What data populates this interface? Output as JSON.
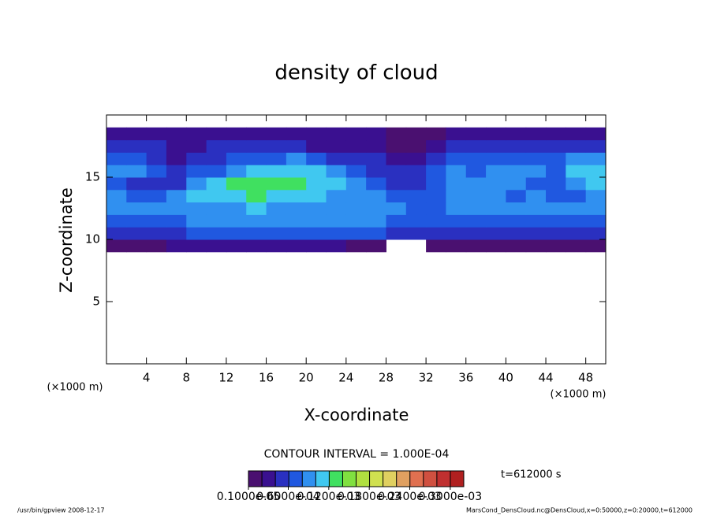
{
  "chart_data": {
    "type": "heatmap",
    "title": "density of cloud",
    "x_label": "X-coordinate",
    "y_label": "Z-coordinate",
    "x_unit": "(×1000 m)",
    "y_unit": "(×1000 m)",
    "contour_interval": "CONTOUR INTERVAL = 1.000E-04",
    "time_label": "t=612000 s",
    "footer_left": "/usr/bin/gpview  2008-12-17",
    "footer_right": "MarsCond_DensCloud.nc@DensCloud,x=0:50000,z=0:20000,t=612000",
    "xlim": [
      0,
      50
    ],
    "ylim": [
      0,
      20
    ],
    "xticks": [
      4,
      8,
      12,
      16,
      20,
      24,
      28,
      32,
      36,
      40,
      44,
      48
    ],
    "yticks": [
      5,
      10,
      15
    ],
    "x": [
      1,
      3,
      5,
      7,
      9,
      11,
      13,
      15,
      17,
      19,
      21,
      23,
      25,
      27,
      29,
      31,
      33,
      35,
      37,
      39,
      41,
      43,
      45,
      47,
      49
    ],
    "z": [
      9.5,
      10.5,
      11.5,
      12.5,
      13.5,
      14.5,
      15.5,
      16.5,
      17.5,
      18.5
    ],
    "values": [
      [
        1e-05,
        1e-05,
        1e-05,
        3e-05,
        3e-05,
        3e-05,
        3e-05,
        3e-05,
        3e-05,
        3e-05,
        3e-05,
        3e-05,
        1e-05,
        1e-05,
        null,
        null,
        1e-05,
        1e-05,
        1e-05,
        1e-05,
        1e-05,
        1e-05,
        1e-05,
        1e-05,
        1e-05
      ],
      [
        5e-05,
        5e-05,
        5e-05,
        5e-05,
        7e-05,
        7e-05,
        7e-05,
        7e-05,
        7e-05,
        7e-05,
        7e-05,
        7e-05,
        7e-05,
        7e-05,
        5e-05,
        5e-05,
        5e-05,
        5e-05,
        5e-05,
        5e-05,
        5e-05,
        5e-05,
        5e-05,
        5e-05,
        5e-05
      ],
      [
        7e-05,
        7e-05,
        7e-05,
        7e-05,
        9e-05,
        9e-05,
        9e-05,
        9e-05,
        9e-05,
        9e-05,
        9e-05,
        9e-05,
        9e-05,
        9e-05,
        7e-05,
        7e-05,
        7e-05,
        7e-05,
        7e-05,
        7e-05,
        7e-05,
        7e-05,
        7e-05,
        7e-05,
        7e-05
      ],
      [
        9e-05,
        9e-05,
        9e-05,
        9e-05,
        9e-05,
        9e-05,
        9e-05,
        0.00011,
        9e-05,
        9e-05,
        9e-05,
        9e-05,
        9e-05,
        9e-05,
        9e-05,
        7e-05,
        7e-05,
        9e-05,
        9e-05,
        9e-05,
        9e-05,
        9e-05,
        9e-05,
        9e-05,
        9e-05
      ],
      [
        9e-05,
        7e-05,
        7e-05,
        9e-05,
        0.00011,
        0.00011,
        0.00011,
        0.00013,
        0.00011,
        0.00011,
        0.00011,
        9e-05,
        9e-05,
        9e-05,
        7e-05,
        7e-05,
        7e-05,
        9e-05,
        9e-05,
        9e-05,
        7e-05,
        9e-05,
        7e-05,
        7e-05,
        9e-05
      ],
      [
        7e-05,
        5e-05,
        5e-05,
        5e-05,
        9e-05,
        0.00011,
        0.00013,
        0.00013,
        0.00013,
        0.00013,
        0.00011,
        0.00011,
        9e-05,
        7e-05,
        5e-05,
        5e-05,
        7e-05,
        9e-05,
        9e-05,
        9e-05,
        9e-05,
        7e-05,
        7e-05,
        9e-05,
        0.00011
      ],
      [
        9e-05,
        9e-05,
        7e-05,
        5e-05,
        7e-05,
        7e-05,
        9e-05,
        0.00011,
        0.00011,
        0.00011,
        0.00011,
        9e-05,
        7e-05,
        5e-05,
        5e-05,
        5e-05,
        7e-05,
        9e-05,
        7e-05,
        9e-05,
        9e-05,
        9e-05,
        7e-05,
        0.00011,
        0.00011
      ],
      [
        7e-05,
        7e-05,
        5e-05,
        3e-05,
        5e-05,
        5e-05,
        7e-05,
        7e-05,
        7e-05,
        9e-05,
        7e-05,
        5e-05,
        5e-05,
        5e-05,
        3e-05,
        3e-05,
        5e-05,
        7e-05,
        7e-05,
        7e-05,
        7e-05,
        7e-05,
        7e-05,
        9e-05,
        9e-05
      ],
      [
        5e-05,
        5e-05,
        5e-05,
        3e-05,
        3e-05,
        5e-05,
        5e-05,
        5e-05,
        5e-05,
        5e-05,
        3e-05,
        3e-05,
        3e-05,
        3e-05,
        1e-05,
        1e-05,
        3e-05,
        5e-05,
        5e-05,
        5e-05,
        5e-05,
        5e-05,
        5e-05,
        5e-05,
        5e-05
      ],
      [
        3e-05,
        3e-05,
        3e-05,
        3e-05,
        3e-05,
        3e-05,
        3e-05,
        3e-05,
        3e-05,
        3e-05,
        3e-05,
        3e-05,
        3e-05,
        3e-05,
        1e-05,
        1e-05,
        1e-05,
        3e-05,
        3e-05,
        3e-05,
        3e-05,
        3e-05,
        3e-05,
        3e-05,
        3e-05
      ]
    ],
    "colorbar": {
      "lim": [
        1e-06,
        0.00032
      ],
      "colors": [
        "#4a1070",
        "#3a1090",
        "#2a30c0",
        "#2058e0",
        "#3090f0",
        "#40c8f0",
        "#40e060",
        "#80e040",
        "#b0e040",
        "#d0e050",
        "#e0d060",
        "#e0a060",
        "#e07050",
        "#d05040",
        "#c03030",
        "#b02020"
      ],
      "ticks": [
        {
          "value": 1e-06,
          "label": "0.1000e-05"
        },
        {
          "value": 6e-05,
          "label": "0.6000e-04"
        },
        {
          "value": 0.00012,
          "label": "0.1200e-03"
        },
        {
          "value": 0.00018,
          "label": "0.1800e-03"
        },
        {
          "value": 0.00024,
          "label": "0.2400e-03"
        },
        {
          "value": 0.0003,
          "label": "0.3000e-03"
        }
      ]
    }
  }
}
